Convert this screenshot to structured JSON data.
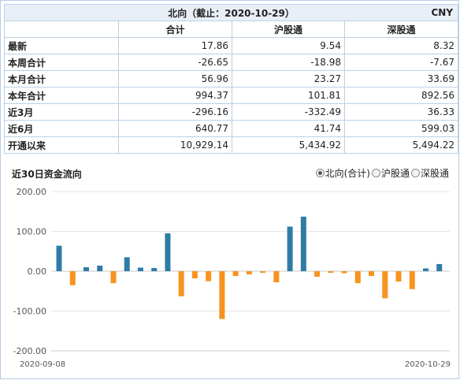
{
  "table": {
    "title": "北向（截止：2020-10-29）",
    "currency": "CNY",
    "headers": [
      "",
      "合计",
      "沪股通",
      "深股通"
    ],
    "rows": [
      {
        "label": "最新",
        "values": [
          "17.86",
          "9.54",
          "8.32"
        ]
      },
      {
        "label": "本周合计",
        "values": [
          "-26.65",
          "-18.98",
          "-7.67"
        ]
      },
      {
        "label": "本月合计",
        "values": [
          "56.96",
          "23.27",
          "33.69"
        ]
      },
      {
        "label": "本年合计",
        "values": [
          "994.37",
          "101.81",
          "892.56"
        ]
      },
      {
        "label": "近3月",
        "values": [
          "-296.16",
          "-332.49",
          "36.33"
        ]
      },
      {
        "label": "近6月",
        "values": [
          "640.77",
          "41.74",
          "599.03"
        ]
      },
      {
        "label": "开通以来",
        "values": [
          "10,929.14",
          "5,434.92",
          "5,494.22"
        ]
      }
    ]
  },
  "chart_section": {
    "title": "近30日资金流向",
    "options": [
      {
        "label": "北向(合计)",
        "selected": true
      },
      {
        "label": "沪股通",
        "selected": false
      },
      {
        "label": "深股通",
        "selected": false
      }
    ]
  },
  "colors": {
    "positive": "#2e7ca6",
    "negative": "#f7931e",
    "header_bg": "#e9eff7",
    "border": "#bcd0e6"
  },
  "chart_data": {
    "type": "bar",
    "ylim": [
      -200,
      200
    ],
    "yticks": [
      "200.00",
      "100.00",
      "0.00",
      "-100.00",
      "-200.00"
    ],
    "x_start_label": "2020-09-08",
    "x_end_label": "2020-10-29",
    "series": [
      {
        "values": [
          64,
          -35,
          10,
          14,
          -30,
          35,
          9,
          8,
          95,
          -63,
          -18,
          -25,
          -120,
          -12,
          -8,
          -4,
          -28,
          112,
          137,
          -14,
          -4,
          -5,
          -30,
          -12,
          -68,
          -26,
          -45,
          7,
          18
        ]
      }
    ]
  }
}
